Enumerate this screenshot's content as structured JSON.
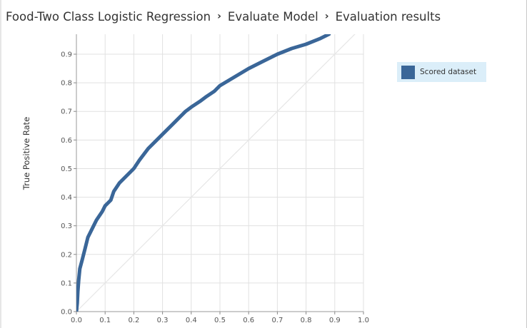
{
  "breadcrumb": {
    "items": [
      "Food-Two Class Logistic Regression",
      "Evaluate Model",
      "Evaluation results"
    ],
    "separator": "›"
  },
  "colors": {
    "series": "#3a6698",
    "grid": "#e1e1e1",
    "diagonal": "#e6e6e6",
    "legend_bg": "#dbeef9"
  },
  "chart_data": {
    "type": "line",
    "title": "",
    "xlabel": "",
    "ylabel": "True Positive Rate",
    "xlim": [
      0,
      1.0
    ],
    "ylim": [
      0,
      0.97
    ],
    "x_ticks": [
      "0.0",
      "0.1",
      "0.2",
      "0.3",
      "0.4",
      "0.5",
      "0.6",
      "0.7",
      "0.8",
      "0.9",
      "1.0"
    ],
    "y_ticks": [
      "0.0",
      "0.1",
      "0.2",
      "0.3",
      "0.4",
      "0.5",
      "0.6",
      "0.7",
      "0.8",
      "0.9"
    ],
    "grid": true,
    "legend_position": "right",
    "reference_line": {
      "x": [
        0,
        1
      ],
      "y": [
        0,
        1
      ]
    },
    "series": [
      {
        "name": "Scored dataset",
        "x": [
          0,
          0.003,
          0.005,
          0.008,
          0.012,
          0.02,
          0.03,
          0.04,
          0.05,
          0.07,
          0.09,
          0.1,
          0.12,
          0.13,
          0.15,
          0.17,
          0.2,
          0.22,
          0.25,
          0.28,
          0.3,
          0.33,
          0.35,
          0.38,
          0.4,
          0.43,
          0.45,
          0.48,
          0.5,
          0.55,
          0.6,
          0.65,
          0.7,
          0.75,
          0.8,
          0.85,
          0.88
        ],
        "y": [
          0,
          0.03,
          0.07,
          0.11,
          0.15,
          0.18,
          0.22,
          0.26,
          0.28,
          0.32,
          0.35,
          0.37,
          0.39,
          0.42,
          0.45,
          0.47,
          0.5,
          0.53,
          0.57,
          0.6,
          0.62,
          0.65,
          0.67,
          0.7,
          0.715,
          0.735,
          0.75,
          0.77,
          0.79,
          0.82,
          0.85,
          0.875,
          0.9,
          0.92,
          0.935,
          0.955,
          0.97
        ]
      }
    ]
  }
}
